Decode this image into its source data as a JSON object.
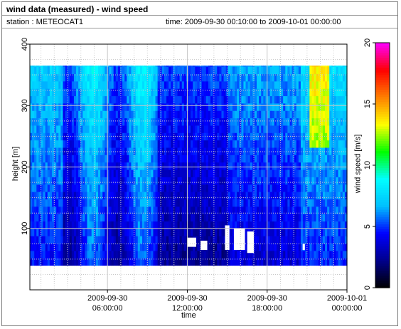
{
  "header": {
    "title": "wind data (measured) - wind speed",
    "station": "station : METEOCAT1",
    "time_range": "time: 2009-09-30 00:10:00 to 2009-10-01 00:00:00"
  },
  "chart_data": {
    "type": "heatmap",
    "title": "wind data (measured) - wind speed",
    "xlabel": "time",
    "ylabel": "height [m]",
    "colorbar_label": "wind speed [m/s]",
    "x_range": [
      "2009-09-30 00:10:00",
      "2009-10-01 00:00:00"
    ],
    "ylim": [
      0,
      400
    ],
    "y_ticks": [
      100,
      200,
      300,
      400
    ],
    "x_ticks": [
      {
        "line1": "2009-09-30",
        "line2": "06:00:00"
      },
      {
        "line1": "2009-09-30",
        "line2": "12:00:00"
      },
      {
        "line1": "2009-09-30",
        "line2": "18:00:00"
      },
      {
        "line1": "2009-10-01",
        "line2": "00:00:00"
      }
    ],
    "colorbar": {
      "min": 0,
      "max": 20,
      "ticks": [
        0,
        5,
        10,
        15,
        20
      ]
    },
    "colormap": [
      "#000000",
      "#00008b",
      "#0000ff",
      "#00bfff",
      "#00ffff",
      "#00ff00",
      "#ffff00",
      "#ff8000",
      "#ff0000",
      "#ff00ff"
    ],
    "grid": true,
    "data_lower_height_m": 40,
    "max_height_m": 365,
    "column_top_heights_m": [
      365,
      365,
      365,
      365,
      365,
      365,
      365,
      365,
      365,
      365,
      365,
      365,
      365,
      365,
      365,
      365,
      365,
      365,
      365,
      365,
      365,
      365,
      365,
      365,
      365,
      365,
      365,
      365,
      365,
      365,
      365,
      365,
      365,
      365,
      365,
      365,
      365,
      365,
      365,
      365,
      365,
      365,
      365,
      365,
      365,
      365,
      365,
      365,
      365,
      365,
      365,
      365,
      365,
      365,
      365,
      365,
      365,
      365,
      365,
      365,
      365,
      365,
      365,
      365,
      365,
      365,
      365,
      365,
      365,
      365,
      365,
      365,
      365,
      365,
      365,
      365,
      365,
      365,
      365,
      365,
      365,
      365,
      365,
      365,
      365,
      365,
      365,
      365,
      365,
      365,
      365,
      365,
      365,
      365,
      365,
      365,
      365,
      365,
      365,
      365,
      365,
      365,
      365,
      365,
      365,
      365,
      365,
      365,
      365,
      365,
      365,
      365,
      365,
      365,
      365,
      365,
      365,
      365,
      365,
      365,
      365,
      365,
      365,
      365,
      365,
      365,
      365,
      365,
      365,
      365,
      365,
      365,
      365,
      365,
      365,
      365,
      365,
      365,
      365,
      365,
      365,
      365,
      365,
      365
    ],
    "speed_rows_m_s": [],
    "missing_data_patches": [
      {
        "time_start": "2009-09-30 12:00:00",
        "time_end": "2009-09-30 12:40:00",
        "height_min_m": 70,
        "height_max_m": 85
      },
      {
        "time_start": "2009-09-30 13:00:00",
        "time_end": "2009-09-30 13:30:00",
        "height_min_m": 65,
        "height_max_m": 80
      },
      {
        "time_start": "2009-09-30 14:50:00",
        "time_end": "2009-09-30 15:10:00",
        "height_min_m": 65,
        "height_max_m": 105
      },
      {
        "time_start": "2009-09-30 15:30:00",
        "time_end": "2009-09-30 16:20:00",
        "height_min_m": 65,
        "height_max_m": 100
      },
      {
        "time_start": "2009-09-30 16:30:00",
        "time_end": "2009-09-30 17:00:00",
        "height_min_m": 60,
        "height_max_m": 95
      },
      {
        "time_start": "2009-09-30 20:40:00",
        "time_end": "2009-09-30 20:50:00",
        "height_min_m": 65,
        "height_max_m": 75
      }
    ]
  }
}
